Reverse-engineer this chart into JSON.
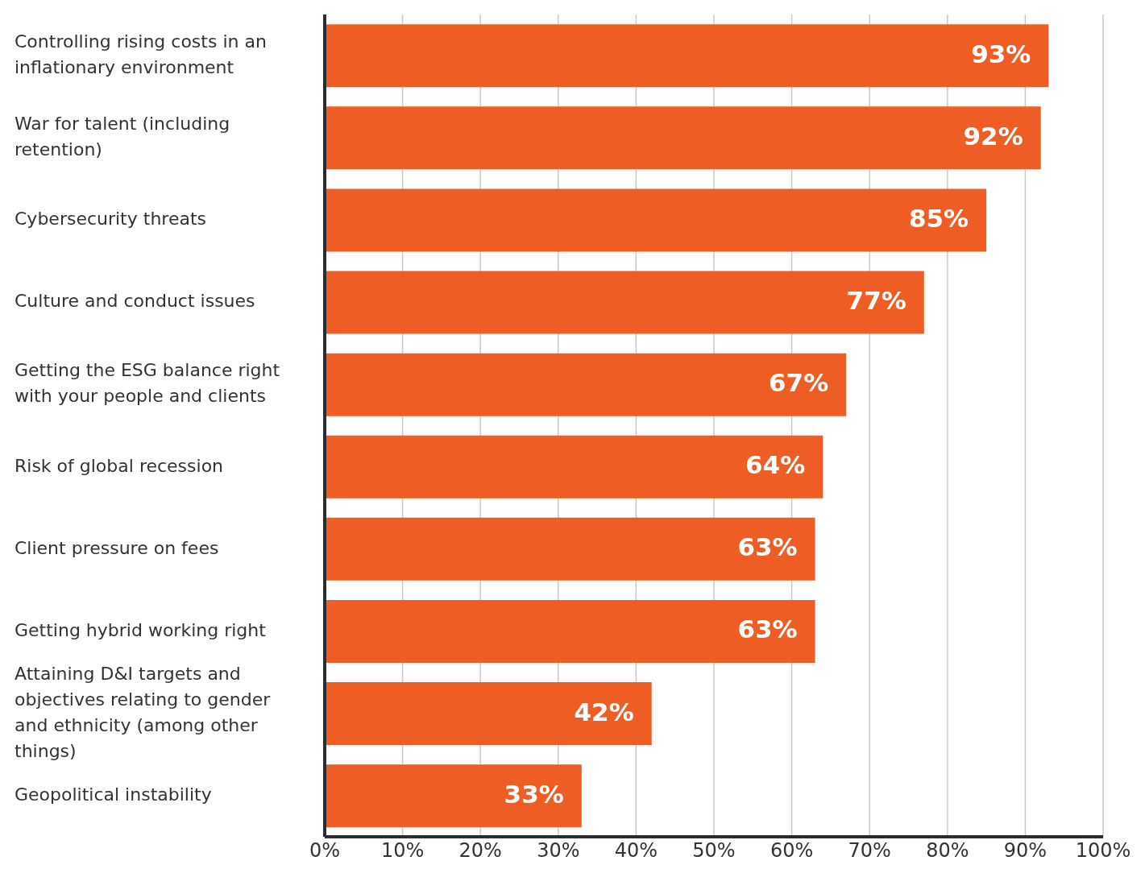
{
  "chart_data": {
    "type": "bar",
    "orientation": "horizontal",
    "categories": [
      "Controlling rising costs in an inflationary environment",
      "War for talent (including retention)",
      "Cybersecurity threats",
      "Culture and conduct issues",
      "Getting the ESG balance right with your people and clients",
      "Risk of global recession",
      "Client pressure on fees",
      "Getting hybrid working right",
      "Attaining D&I targets and objectives relating to gender and ethnicity (among other things)",
      "Geopolitical instability"
    ],
    "values": [
      93,
      92,
      85,
      77,
      67,
      64,
      63,
      63,
      42,
      33
    ],
    "value_labels": [
      "93%",
      "92%",
      "85%",
      "77%",
      "67%",
      "64%",
      "63%",
      "63%",
      "42%",
      "33%"
    ],
    "color": "#ee5e24",
    "xlim": [
      0,
      100
    ],
    "xticks": [
      {
        "value": 0,
        "label": "0%"
      },
      {
        "value": 10,
        "label": "10%"
      },
      {
        "value": 20,
        "label": "20%"
      },
      {
        "value": 30,
        "label": "30%"
      },
      {
        "value": 40,
        "label": "40%"
      },
      {
        "value": 50,
        "label": "50%"
      },
      {
        "value": 60,
        "label": "60%"
      },
      {
        "value": 70,
        "label": "70%"
      },
      {
        "value": 80,
        "label": "80%"
      },
      {
        "value": 90,
        "label": "90%"
      },
      {
        "value": 100,
        "label": "100%"
      }
    ],
    "grid": "x"
  }
}
